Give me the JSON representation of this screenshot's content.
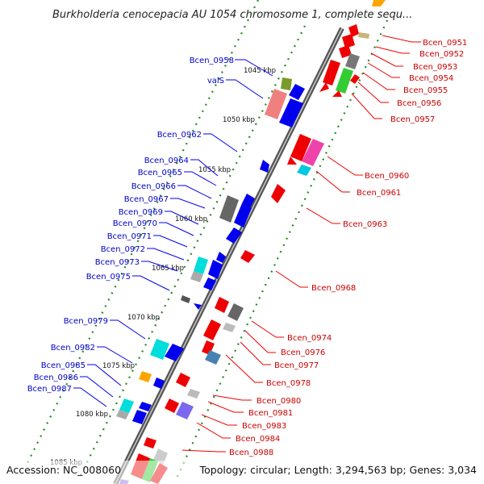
{
  "title": "Burkholderia cenocepacia AU 1054 chromosome 1, complete sequ...",
  "footer": {
    "accession": "Accession: NC_008060",
    "stats": "Topology: circular; Length: 3,294,563 bp; Genes: 3,034"
  },
  "colors": {
    "forward": "#0000ee",
    "reverse": "#ee0000",
    "left_label": "#0000cc",
    "right_label": "#cc0000",
    "backbone": "#777777",
    "tick": "#228b22"
  },
  "scale_labels": [
    "1045 kbp",
    "1050 kbp",
    "1055 kbp",
    "1060 kbp",
    "1065 kbp",
    "1070 kbp",
    "1075 kbp",
    "1080 kbp",
    "1085 kbp"
  ],
  "left_genes": [
    "Bcen_0958",
    "valS",
    "Bcen_0962",
    "Bcen_0964",
    "Bcen_0965",
    "Bcen_0966",
    "Bcen_0967",
    "Bcen_0969",
    "Bcen_0970",
    "Bcen_0971",
    "Bcen_0972",
    "Bcen_0973",
    "Bcen_0975",
    "Bcen_0979",
    "Bcen_0982",
    "Bcen_0985",
    "Bcen_0986",
    "Bcen_0987"
  ],
  "right_genes": [
    "Bcen_0951",
    "Bcen_0952",
    "Bcen_0953",
    "Bcen_0954",
    "Bcen_0955",
    "Bcen_0956",
    "Bcen_0957",
    "Bcen_0960",
    "Bcen_0961",
    "Bcen_0963",
    "Bcen_0968",
    "Bcen_0974",
    "Bcen_0976",
    "Bcen_0977",
    "Bcen_0978",
    "Bcen_0980",
    "Bcen_0981",
    "Bcen_0983",
    "Bcen_0984",
    "Bcen_0988"
  ]
}
